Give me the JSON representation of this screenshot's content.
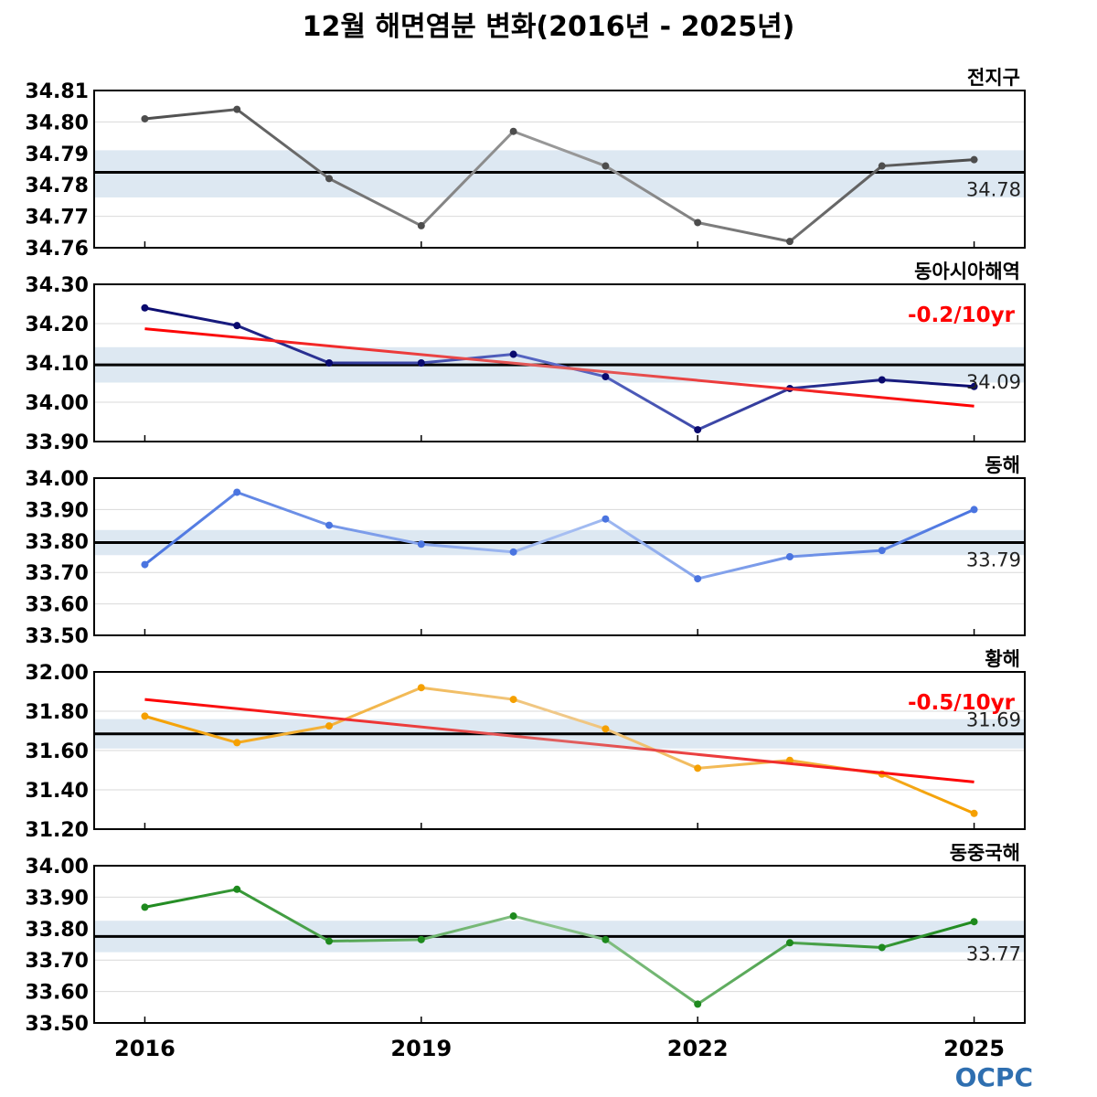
{
  "title": "12월 해면염분 변화(2016년 - 2025년)",
  "logo": "OCPC",
  "colors": {
    "band": "#dde8f2",
    "mean_line": "#000000",
    "trend": "#ff0000",
    "grid": "#d9d9d9"
  },
  "chart_data": [
    {
      "type": "line",
      "name": "전지구",
      "color_dark": "#4d4d4d",
      "color_light": "#9a9a9a",
      "x": [
        2016,
        2017,
        2018,
        2019,
        2020,
        2021,
        2022,
        2023,
        2024,
        2025
      ],
      "values": [
        34.801,
        34.804,
        34.782,
        34.767,
        34.797,
        34.786,
        34.768,
        34.762,
        34.786,
        34.788
      ],
      "ylim": [
        34.76,
        34.81
      ],
      "yticks": [
        "34.81",
        "34.80",
        "34.79",
        "34.78",
        "34.77",
        "34.76"
      ],
      "mean": 34.784,
      "mean_label": "34.78",
      "band": [
        34.776,
        34.791
      ],
      "trend": null
    },
    {
      "type": "line",
      "name": "동아시아해역",
      "color_dark": "#0a0a6e",
      "color_light": "#5a6bc8",
      "x": [
        2016,
        2017,
        2018,
        2019,
        2020,
        2021,
        2022,
        2023,
        2024,
        2025
      ],
      "values": [
        34.24,
        34.195,
        34.1,
        34.1,
        34.122,
        34.065,
        33.93,
        34.035,
        34.057,
        34.04
      ],
      "ylim": [
        33.9,
        34.3
      ],
      "yticks": [
        "34.30",
        "34.20",
        "34.10",
        "34.00",
        "33.90"
      ],
      "mean": 34.095,
      "mean_label": "34.09",
      "band": [
        34.05,
        34.14
      ],
      "trend": {
        "label": "-0.2/10yr",
        "start": 34.187,
        "end": 33.99
      }
    },
    {
      "type": "line",
      "name": "동해",
      "color_dark": "#4a74e0",
      "color_light": "#a7bff2",
      "x": [
        2016,
        2017,
        2018,
        2019,
        2020,
        2021,
        2022,
        2023,
        2024,
        2025
      ],
      "values": [
        33.725,
        33.955,
        33.85,
        33.79,
        33.765,
        33.87,
        33.68,
        33.75,
        33.77,
        33.9
      ],
      "ylim": [
        33.5,
        34.0
      ],
      "yticks": [
        "34.00",
        "33.90",
        "33.80",
        "33.70",
        "33.60",
        "33.50"
      ],
      "mean": 33.795,
      "mean_label": "33.79",
      "band": [
        33.755,
        33.835
      ],
      "trend": null
    },
    {
      "type": "line",
      "name": "황해",
      "color_dark": "#f5a000",
      "color_light": "#f0c98a",
      "x": [
        2016,
        2017,
        2018,
        2019,
        2020,
        2021,
        2022,
        2023,
        2024,
        2025
      ],
      "values": [
        31.775,
        31.64,
        31.725,
        31.92,
        31.86,
        31.71,
        31.51,
        31.55,
        31.48,
        31.28
      ],
      "ylim": [
        31.2,
        32.0
      ],
      "yticks": [
        "32.00",
        "31.80",
        "31.60",
        "31.40",
        "31.20"
      ],
      "mean": 31.685,
      "mean_label": "31.69",
      "band": [
        31.61,
        31.76
      ],
      "trend": {
        "label": "-0.5/10yr",
        "start": 31.86,
        "end": 31.44
      }
    },
    {
      "type": "line",
      "name": "동중국해",
      "color_dark": "#1e8a1e",
      "color_light": "#8cc48c",
      "x": [
        2016,
        2017,
        2018,
        2019,
        2020,
        2021,
        2022,
        2023,
        2024,
        2025
      ],
      "values": [
        33.868,
        33.925,
        33.76,
        33.765,
        33.84,
        33.765,
        33.56,
        33.755,
        33.74,
        33.822
      ],
      "ylim": [
        33.5,
        34.0
      ],
      "yticks": [
        "34.00",
        "33.90",
        "33.80",
        "33.70",
        "33.60",
        "33.50"
      ],
      "mean": 33.775,
      "mean_label": "33.77",
      "band": [
        33.725,
        33.825
      ],
      "trend": null
    }
  ],
  "xaxis": {
    "xlim": [
      2015.45,
      2025.55
    ],
    "ticks": [
      "2016",
      "2019",
      "2022",
      "2025"
    ]
  }
}
